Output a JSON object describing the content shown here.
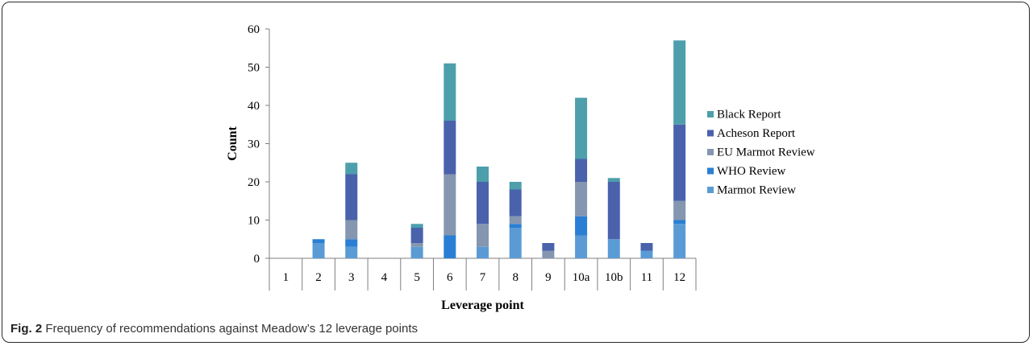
{
  "caption": {
    "label": "Fig. 2",
    "text": "Frequency of recommendations against Meadow’s 12 leverage points"
  },
  "chart_data": {
    "type": "bar",
    "stacked": true,
    "title": "",
    "xlabel": "Leverage point",
    "ylabel": "Count",
    "ylim": [
      0,
      60
    ],
    "yticks": [
      0,
      10,
      20,
      30,
      40,
      50,
      60
    ],
    "grid": false,
    "legend_position": "right",
    "categories": [
      "1",
      "2",
      "3",
      "4",
      "5",
      "6",
      "7",
      "8",
      "9",
      "10a",
      "10b",
      "11",
      "12"
    ],
    "series": [
      {
        "name": "Marmot Review",
        "color": "#5b9bd5",
        "values": [
          0,
          4,
          3,
          0,
          3,
          0,
          3,
          8,
          0,
          6,
          5,
          2,
          9
        ]
      },
      {
        "name": "WHO Review",
        "color": "#2a7fd4",
        "values": [
          0,
          1,
          2,
          0,
          0,
          6,
          0,
          1,
          0,
          5,
          0,
          0,
          1
        ]
      },
      {
        "name": "EU Marmot Review",
        "color": "#8496b0",
        "values": [
          0,
          0,
          5,
          0,
          1,
          16,
          6,
          2,
          2,
          9,
          0,
          0,
          5
        ]
      },
      {
        "name": "Acheson Report",
        "color": "#4a62ac",
        "values": [
          0,
          0,
          12,
          0,
          4,
          14,
          11,
          7,
          2,
          6,
          15,
          2,
          20
        ]
      },
      {
        "name": "Black Report",
        "color": "#4d9fab",
        "values": [
          0,
          0,
          3,
          0,
          1,
          15,
          4,
          2,
          0,
          16,
          1,
          0,
          22
        ]
      }
    ]
  }
}
